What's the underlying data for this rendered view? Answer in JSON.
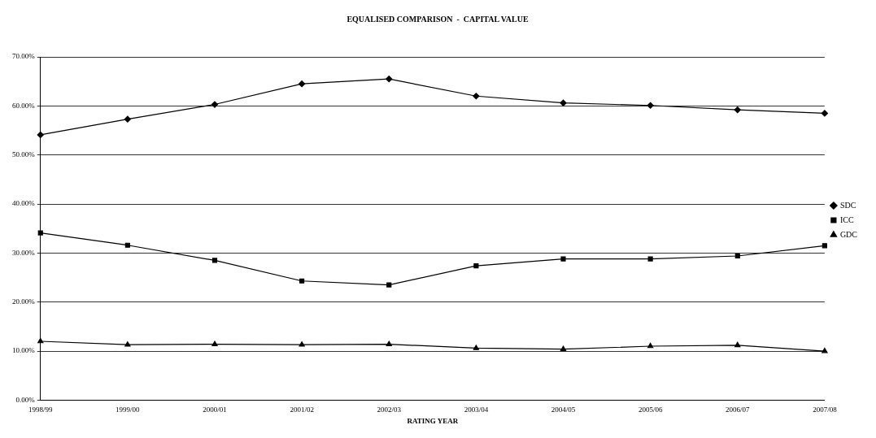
{
  "chart_data": {
    "type": "line",
    "title": "EQUALISED COMPARISON  -  CAPITAL VALUE",
    "xlabel": "RATING YEAR",
    "categories": [
      "1998/99",
      "1999/00",
      "2000/01",
      "2001/02",
      "2002/03",
      "2003/04",
      "2004/05",
      "2005/06",
      "2006/07",
      "2007/08"
    ],
    "series": [
      {
        "name": "SDC",
        "color": "#000000",
        "marker": "diamond",
        "values": [
          54.1,
          57.3,
          60.3,
          64.5,
          65.5,
          62.0,
          60.6,
          60.1,
          59.2,
          58.5
        ]
      },
      {
        "name": "ICC",
        "color": "#000000",
        "marker": "square",
        "values": [
          34.1,
          31.6,
          28.5,
          24.3,
          23.5,
          27.4,
          28.8,
          28.8,
          29.4,
          31.5
        ]
      },
      {
        "name": "GDC",
        "color": "#000000",
        "marker": "triangle",
        "values": [
          12.0,
          11.3,
          11.4,
          11.3,
          11.4,
          10.6,
          10.4,
          11.0,
          11.2,
          10.0
        ]
      }
    ],
    "ylim": [
      0,
      70
    ],
    "yticks": [
      {
        "value": 0,
        "label": "0.00%"
      },
      {
        "value": 10,
        "label": "10.00%"
      },
      {
        "value": 20,
        "label": "20.00%"
      },
      {
        "value": 30,
        "label": "30.00%"
      },
      {
        "value": 40,
        "label": "40.00%"
      },
      {
        "value": 50,
        "label": "50.00%"
      },
      {
        "value": 60,
        "label": "60.00%"
      },
      {
        "value": 70,
        "label": "70.00%"
      }
    ],
    "grid": "y",
    "legend": "right",
    "line_style": "solid"
  }
}
